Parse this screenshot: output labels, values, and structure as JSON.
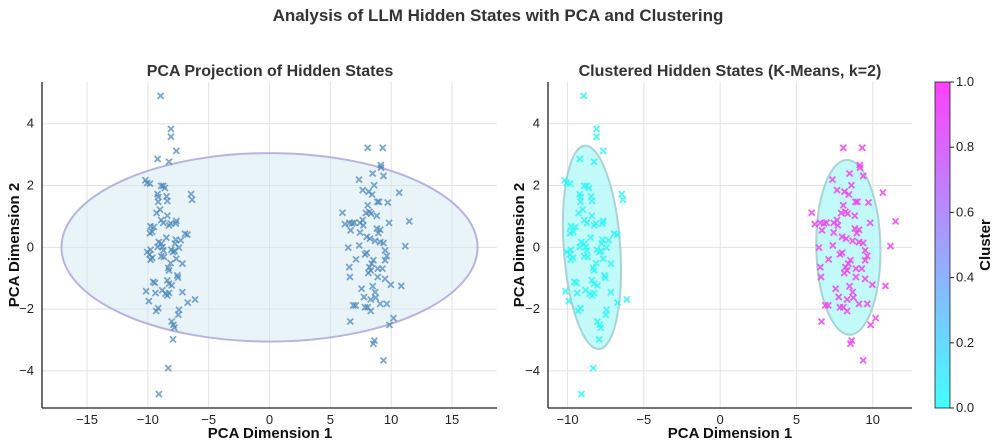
{
  "title": "Analysis of LLM Hidden States with PCA and Clustering",
  "colors": {
    "left_points": "#4682b4",
    "cluster0": "#33f5f5",
    "cluster1": "#ee44ee",
    "left_ellipse_fill": "#cfe6f2",
    "left_ellipse_edge": "#a9a3d6",
    "cluster_ellipse_fill": "#b3f7f7",
    "cluster_ellipse_edge": "#9cc9c9"
  },
  "chart_data": [
    {
      "type": "scatter",
      "title": "PCA Projection of Hidden States",
      "xlabel": "PCA Dimension 1",
      "ylabel": "PCA Dimension 2",
      "xlim": [
        -18.7,
        18.7
      ],
      "ylim": [
        -5.2,
        5.35
      ],
      "xticks": [
        -15,
        -10,
        -5,
        0,
        5,
        10,
        15
      ],
      "yticks": [
        -4,
        -2,
        0,
        2,
        4
      ],
      "grid": true,
      "marker": "x",
      "ellipse": {
        "center": [
          0,
          0
        ],
        "half_width": 17.1,
        "half_height": 3.05,
        "angle": 0
      }
    },
    {
      "type": "scatter",
      "title": "Clustered Hidden States (K-Means, k=2)",
      "xlabel": "PCA Dimension 1",
      "ylabel": "PCA Dimension 2",
      "xlim": [
        -11.28,
        12.57
      ],
      "ylim": [
        -5.2,
        5.35
      ],
      "xticks": [
        -10,
        -5,
        0,
        5,
        10
      ],
      "yticks": [
        -4,
        -2,
        0,
        2,
        4
      ],
      "grid": true,
      "marker": "x",
      "colorbar": {
        "label": "Cluster",
        "range": [
          0,
          1
        ],
        "ticks": [
          "0.0",
          "0.2",
          "0.4",
          "0.6",
          "0.8",
          "1.0"
        ]
      },
      "ellipses": [
        {
          "cluster": 0,
          "center": [
            -8.4,
            0
          ],
          "half_width": 1.85,
          "half_height": 3.3,
          "angle": -4
        },
        {
          "cluster": 1,
          "center": [
            8.4,
            0
          ],
          "half_width": 2.1,
          "half_height": 2.83,
          "angle": -1
        }
      ]
    }
  ],
  "points": {
    "cluster0": [
      [
        -8.95,
        4.9
      ],
      [
        -8.1,
        3.83
      ],
      [
        -8.1,
        3.58
      ],
      [
        -7.66,
        3.12
      ],
      [
        -9.2,
        2.86
      ],
      [
        -8.26,
        2.77
      ],
      [
        -10.2,
        2.17
      ],
      [
        -10.06,
        2.08
      ],
      [
        -9.83,
        2.06
      ],
      [
        -8.9,
        1.99
      ],
      [
        -8.73,
        1.99
      ],
      [
        -8.6,
        1.92
      ],
      [
        -9.2,
        1.72
      ],
      [
        -9.15,
        1.63
      ],
      [
        -8.46,
        1.65
      ],
      [
        -8.4,
        1.5
      ],
      [
        -6.45,
        1.72
      ],
      [
        -6.36,
        1.54
      ],
      [
        -9.15,
        1.47
      ],
      [
        -9.28,
        1.11
      ],
      [
        -9.0,
        1.22
      ],
      [
        -8.4,
        1.02
      ],
      [
        -8.9,
        0.88
      ],
      [
        -8.73,
        0.79
      ],
      [
        -8.13,
        0.77
      ],
      [
        -7.71,
        0.77
      ],
      [
        -8.26,
        0.71
      ],
      [
        -7.66,
        0.85
      ],
      [
        -9.78,
        0.68
      ],
      [
        -9.5,
        0.66
      ],
      [
        -9.83,
        0.46
      ],
      [
        -9.64,
        0.5
      ],
      [
        -6.75,
        0.41
      ],
      [
        -6.94,
        0.44
      ],
      [
        -8.48,
        0.31
      ],
      [
        -7.71,
        0.25
      ],
      [
        -7.77,
        0.12
      ],
      [
        -7.3,
        0.23
      ],
      [
        -9.1,
        0.17
      ],
      [
        -8.9,
        0.12
      ],
      [
        -9.2,
        0.01
      ],
      [
        -8.8,
        0.01
      ],
      [
        -7.44,
        -0.01
      ],
      [
        -9.78,
        -0.08
      ],
      [
        -10.05,
        -0.15
      ],
      [
        -9.86,
        -0.23
      ],
      [
        -8.73,
        -0.1
      ],
      [
        -8.07,
        -0.08
      ],
      [
        -7.93,
        -0.15
      ],
      [
        -7.8,
        -0.12
      ],
      [
        -9.64,
        -0.34
      ],
      [
        -9.78,
        -0.4
      ],
      [
        -8.9,
        -0.29
      ],
      [
        -8.68,
        -0.31
      ],
      [
        -7.66,
        -0.37
      ],
      [
        -7.16,
        -0.53
      ],
      [
        -8.13,
        -0.51
      ],
      [
        -8.32,
        -0.67
      ],
      [
        -8.26,
        -0.75
      ],
      [
        -7.58,
        -0.91
      ],
      [
        -7.52,
        -0.98
      ],
      [
        -9.56,
        -1.12
      ],
      [
        -9.42,
        -1.15
      ],
      [
        -8.4,
        -1.07
      ],
      [
        -8.26,
        -1.18
      ],
      [
        -8.04,
        -1.23
      ],
      [
        -10.14,
        -1.42
      ],
      [
        -9.37,
        -1.48
      ],
      [
        -8.82,
        -1.39
      ],
      [
        -8.54,
        -1.5
      ],
      [
        -8.4,
        -1.56
      ],
      [
        -8.26,
        -1.48
      ],
      [
        -7.16,
        -1.45
      ],
      [
        -9.92,
        -1.74
      ],
      [
        -6.72,
        -1.79
      ],
      [
        -6.12,
        -1.69
      ],
      [
        -9.15,
        -1.97
      ],
      [
        -9.31,
        -2.06
      ],
      [
        -7.44,
        -2.02
      ],
      [
        -7.5,
        -2.18
      ],
      [
        -8.04,
        -2.4
      ],
      [
        -7.9,
        -2.51
      ],
      [
        -7.82,
        -2.6
      ],
      [
        -7.93,
        -2.98
      ],
      [
        -8.32,
        -3.91
      ],
      [
        -9.09,
        -4.75
      ]
    ],
    "cluster1": [
      [
        8.07,
        3.22
      ],
      [
        9.31,
        3.22
      ],
      [
        9.15,
        2.66
      ],
      [
        9.17,
        2.58
      ],
      [
        9.37,
        2.31
      ],
      [
        8.48,
        2.39
      ],
      [
        7.36,
        2.19
      ],
      [
        8.6,
        2.01
      ],
      [
        7.66,
        1.85
      ],
      [
        10.66,
        1.77
      ],
      [
        8.15,
        1.8
      ],
      [
        8.43,
        1.71
      ],
      [
        8.87,
        1.47
      ],
      [
        9.0,
        1.47
      ],
      [
        9.72,
        1.45
      ],
      [
        8.07,
        1.36
      ],
      [
        6.0,
        1.12
      ],
      [
        7.93,
        1.11
      ],
      [
        8.21,
        1.15
      ],
      [
        8.35,
        1.09
      ],
      [
        8.82,
        1.02
      ],
      [
        7.66,
        0.88
      ],
      [
        7.44,
        0.79
      ],
      [
        7.71,
        0.71
      ],
      [
        6.2,
        0.75
      ],
      [
        6.56,
        0.79
      ],
      [
        6.8,
        0.77
      ],
      [
        6.97,
        0.8
      ],
      [
        9.83,
        0.79
      ],
      [
        11.49,
        0.84
      ],
      [
        6.67,
        0.55
      ],
      [
        8.82,
        0.61
      ],
      [
        9.1,
        0.57
      ],
      [
        8.95,
        0.46
      ],
      [
        7.44,
        0.48
      ],
      [
        7.99,
        0.34
      ],
      [
        8.26,
        0.28
      ],
      [
        8.68,
        0.21
      ],
      [
        9.1,
        0.17
      ],
      [
        9.37,
        0.14
      ],
      [
        6.47,
        -0.01
      ],
      [
        7.38,
        0.06
      ],
      [
        11.16,
        0.04
      ],
      [
        9.5,
        -0.1
      ],
      [
        7.85,
        -0.23
      ],
      [
        7.99,
        -0.18
      ],
      [
        9.64,
        -0.28
      ],
      [
        7.11,
        -0.39
      ],
      [
        9.5,
        -0.42
      ],
      [
        8.54,
        -0.42
      ],
      [
        8.4,
        -0.53
      ],
      [
        6.56,
        -0.64
      ],
      [
        8.21,
        -0.64
      ],
      [
        8.32,
        -0.75
      ],
      [
        8.13,
        -0.83
      ],
      [
        8.9,
        -0.69
      ],
      [
        9.28,
        -0.69
      ],
      [
        6.61,
        -0.96
      ],
      [
        8.9,
        -0.96
      ],
      [
        9.5,
        -1.02
      ],
      [
        9.97,
        -1.21
      ],
      [
        10.83,
        -1.25
      ],
      [
        8.48,
        -1.26
      ],
      [
        7.57,
        -1.34
      ],
      [
        8.68,
        -1.45
      ],
      [
        7.77,
        -1.61
      ],
      [
        8.73,
        -1.63
      ],
      [
        8.32,
        -1.69
      ],
      [
        6.89,
        -1.88
      ],
      [
        7.08,
        -1.88
      ],
      [
        9.1,
        -1.83
      ],
      [
        9.64,
        -1.83
      ],
      [
        7.85,
        -1.94
      ],
      [
        8.07,
        -1.94
      ],
      [
        8.32,
        -2.06
      ],
      [
        6.64,
        -2.4
      ],
      [
        10.19,
        -2.29
      ],
      [
        9.86,
        -2.51
      ],
      [
        8.62,
        -3.02
      ],
      [
        8.54,
        -3.12
      ],
      [
        9.37,
        -3.66
      ]
    ]
  }
}
